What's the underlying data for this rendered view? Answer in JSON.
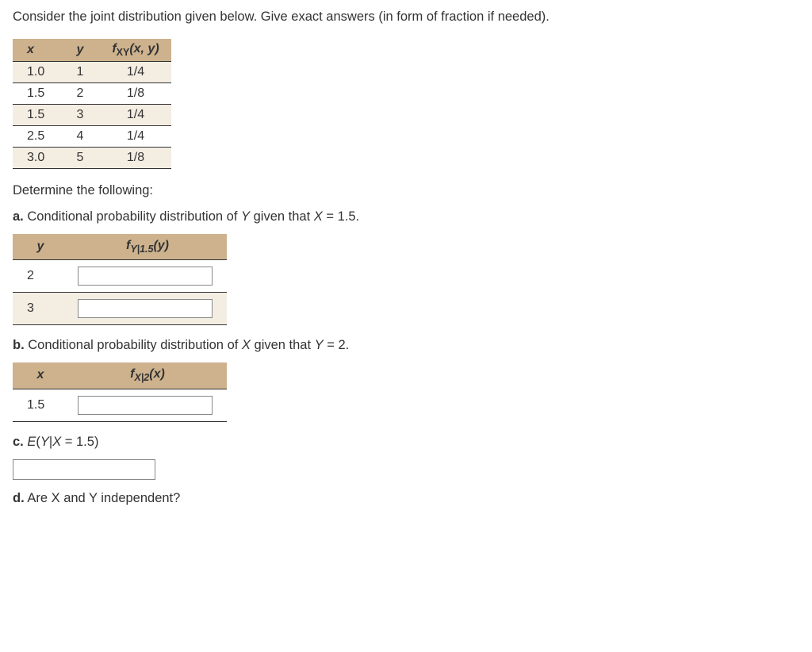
{
  "intro": "Consider the joint distribution given below. Give exact answers (in form of fraction if needed).",
  "jointTable": {
    "headers": {
      "x": "x",
      "y": "y",
      "f": "f",
      "fsub": "XY",
      "farg": "(x, y)"
    },
    "rows": [
      {
        "x": "1.0",
        "y": "1",
        "f": "1/4"
      },
      {
        "x": "1.5",
        "y": "2",
        "f": "1/8"
      },
      {
        "x": "1.5",
        "y": "3",
        "f": "1/4"
      },
      {
        "x": "2.5",
        "y": "4",
        "f": "1/4"
      },
      {
        "x": "3.0",
        "y": "5",
        "f": "1/8"
      }
    ]
  },
  "determine": "Determine the following:",
  "partA": {
    "label": "a.",
    "text": " Conditional probability distribution of ",
    "var1": "Y",
    "mid": " given that ",
    "var2": "X",
    "eq": " = 1.5.",
    "header_y": "y",
    "header_f": "f",
    "header_fsub": "Y|1.5",
    "header_farg": "(y)",
    "rows": [
      {
        "y": "2"
      },
      {
        "y": "3"
      }
    ]
  },
  "partB": {
    "label": "b.",
    "text": " Conditional probability distribution of ",
    "var1": "X",
    "mid": " given that ",
    "var2": "Y",
    "eq": " = 2.",
    "header_x": "x",
    "header_f": "f",
    "header_fsub": "X|2",
    "header_farg": "(x)",
    "rows": [
      {
        "x": "1.5"
      }
    ]
  },
  "partC": {
    "label": "c.",
    "expr_e": "E",
    "expr_open": "(",
    "expr_y": "Y",
    "expr_bar": "|",
    "expr_x": "X",
    "expr_eq": " = 1.5)",
    "text": ""
  },
  "partD": {
    "label": "d.",
    "text": " Are X and Y independent?"
  },
  "colors": {
    "header_bg": "#cdb28d",
    "row_alt_bg": "#f4ede2",
    "border": "#333333",
    "text": "#333333"
  }
}
